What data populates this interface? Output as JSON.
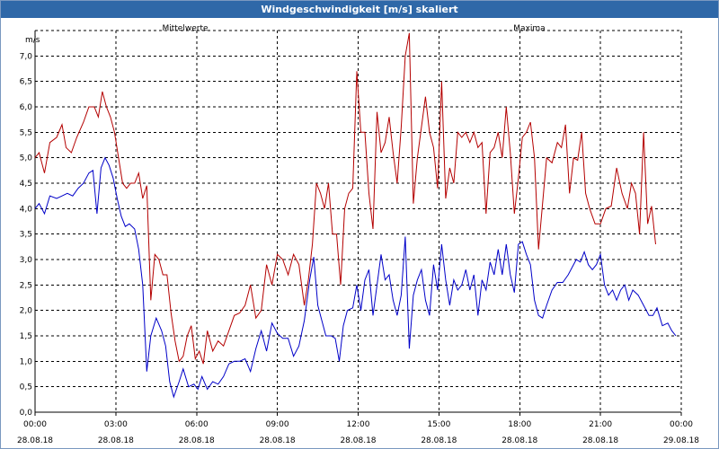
{
  "window": {
    "title": "Windgeschwindigkeit [m/s] skaliert"
  },
  "chart_data": {
    "type": "line",
    "title": "Windgeschwindigkeit [m/s] skaliert",
    "ylabel": "m/s",
    "xlabel": "",
    "ylim": [
      0,
      7.5
    ],
    "xlim": [
      0,
      24
    ],
    "grid": true,
    "legend_position": "top",
    "yticks": [
      0.0,
      0.5,
      1.0,
      1.5,
      2.0,
      2.5,
      3.0,
      3.5,
      4.0,
      4.5,
      5.0,
      5.5,
      6.0,
      6.5,
      7.0
    ],
    "ytick_labels": [
      "0,0",
      "0,5",
      "1,0",
      "1,5",
      "2,0",
      "2,5",
      "3,0",
      "3,5",
      "4,0",
      "4,5",
      "5,0",
      "5,5",
      "6,0",
      "6,5",
      "7,0"
    ],
    "xticks": [
      {
        "time": "00:00",
        "date": "28.08.18"
      },
      {
        "time": "03:00",
        "date": "28.08.18"
      },
      {
        "time": "06:00",
        "date": "28.08.18"
      },
      {
        "time": "09:00",
        "date": "28.08.18"
      },
      {
        "time": "12:00",
        "date": "28.08.18"
      },
      {
        "time": "15:00",
        "date": "28.08.18"
      },
      {
        "time": "18:00",
        "date": "28.08.18"
      },
      {
        "time": "21:00",
        "date": "28.08.18"
      },
      {
        "time": "00:00",
        "date": "29.08.18"
      }
    ],
    "series": [
      {
        "name": "Mittelwerte",
        "color": "#0000c8",
        "points": [
          [
            0.0,
            4.0
          ],
          [
            0.15,
            4.1
          ],
          [
            0.35,
            3.9
          ],
          [
            0.55,
            4.25
          ],
          [
            0.8,
            4.2
          ],
          [
            1.0,
            4.25
          ],
          [
            1.2,
            4.3
          ],
          [
            1.4,
            4.25
          ],
          [
            1.6,
            4.4
          ],
          [
            1.8,
            4.5
          ],
          [
            2.0,
            4.7
          ],
          [
            2.15,
            4.75
          ],
          [
            2.3,
            3.9
          ],
          [
            2.45,
            4.8
          ],
          [
            2.6,
            5.0
          ],
          [
            2.75,
            4.85
          ],
          [
            2.9,
            4.6
          ],
          [
            3.05,
            4.2
          ],
          [
            3.2,
            3.85
          ],
          [
            3.35,
            3.65
          ],
          [
            3.5,
            3.7
          ],
          [
            3.7,
            3.6
          ],
          [
            3.85,
            3.2
          ],
          [
            4.0,
            2.5
          ],
          [
            4.15,
            0.8
          ],
          [
            4.3,
            1.5
          ],
          [
            4.5,
            1.85
          ],
          [
            4.7,
            1.6
          ],
          [
            4.85,
            1.3
          ],
          [
            5.0,
            0.6
          ],
          [
            5.15,
            0.3
          ],
          [
            5.35,
            0.6
          ],
          [
            5.5,
            0.85
          ],
          [
            5.7,
            0.5
          ],
          [
            5.9,
            0.55
          ],
          [
            6.05,
            0.45
          ],
          [
            6.2,
            0.7
          ],
          [
            6.4,
            0.45
          ],
          [
            6.6,
            0.6
          ],
          [
            6.8,
            0.55
          ],
          [
            7.0,
            0.7
          ],
          [
            7.2,
            0.95
          ],
          [
            7.4,
            1.0
          ],
          [
            7.6,
            1.0
          ],
          [
            7.8,
            1.05
          ],
          [
            8.0,
            0.8
          ],
          [
            8.2,
            1.25
          ],
          [
            8.4,
            1.6
          ],
          [
            8.6,
            1.2
          ],
          [
            8.8,
            1.75
          ],
          [
            9.0,
            1.55
          ],
          [
            9.2,
            1.45
          ],
          [
            9.4,
            1.45
          ],
          [
            9.6,
            1.1
          ],
          [
            9.8,
            1.3
          ],
          [
            10.0,
            1.8
          ],
          [
            10.2,
            2.6
          ],
          [
            10.35,
            3.05
          ],
          [
            10.5,
            2.1
          ],
          [
            10.65,
            1.8
          ],
          [
            10.8,
            1.5
          ],
          [
            11.0,
            1.5
          ],
          [
            11.15,
            1.45
          ],
          [
            11.3,
            1.0
          ],
          [
            11.45,
            1.7
          ],
          [
            11.6,
            2.0
          ],
          [
            11.8,
            2.05
          ],
          [
            11.95,
            2.5
          ],
          [
            12.1,
            2.0
          ],
          [
            12.25,
            2.6
          ],
          [
            12.4,
            2.8
          ],
          [
            12.55,
            1.9
          ],
          [
            12.7,
            2.5
          ],
          [
            12.85,
            3.1
          ],
          [
            13.0,
            2.6
          ],
          [
            13.15,
            2.7
          ],
          [
            13.3,
            2.2
          ],
          [
            13.45,
            1.9
          ],
          [
            13.6,
            2.3
          ],
          [
            13.75,
            3.45
          ],
          [
            13.9,
            1.25
          ],
          [
            14.05,
            2.3
          ],
          [
            14.2,
            2.6
          ],
          [
            14.35,
            2.8
          ],
          [
            14.5,
            2.2
          ],
          [
            14.65,
            1.9
          ],
          [
            14.8,
            2.9
          ],
          [
            14.95,
            2.4
          ],
          [
            15.1,
            3.3
          ],
          [
            15.25,
            2.6
          ],
          [
            15.4,
            2.1
          ],
          [
            15.55,
            2.6
          ],
          [
            15.7,
            2.4
          ],
          [
            15.85,
            2.5
          ],
          [
            16.0,
            2.8
          ],
          [
            16.15,
            2.4
          ],
          [
            16.3,
            2.7
          ],
          [
            16.45,
            1.9
          ],
          [
            16.6,
            2.6
          ],
          [
            16.75,
            2.4
          ],
          [
            16.9,
            2.95
          ],
          [
            17.05,
            2.7
          ],
          [
            17.2,
            3.2
          ],
          [
            17.35,
            2.7
          ],
          [
            17.5,
            3.3
          ],
          [
            17.65,
            2.7
          ],
          [
            17.8,
            2.35
          ],
          [
            17.95,
            3.3
          ],
          [
            18.1,
            3.35
          ],
          [
            18.25,
            3.1
          ],
          [
            18.4,
            2.9
          ],
          [
            18.55,
            2.2
          ],
          [
            18.7,
            1.9
          ],
          [
            18.85,
            1.85
          ],
          [
            19.0,
            2.1
          ],
          [
            19.2,
            2.4
          ],
          [
            19.4,
            2.55
          ],
          [
            19.6,
            2.55
          ],
          [
            19.8,
            2.7
          ],
          [
            19.95,
            2.85
          ],
          [
            20.1,
            3.0
          ],
          [
            20.25,
            2.95
          ],
          [
            20.4,
            3.15
          ],
          [
            20.55,
            2.9
          ],
          [
            20.7,
            2.8
          ],
          [
            20.85,
            2.9
          ],
          [
            21.0,
            3.1
          ],
          [
            21.15,
            2.5
          ],
          [
            21.3,
            2.3
          ],
          [
            21.45,
            2.4
          ],
          [
            21.6,
            2.2
          ],
          [
            21.75,
            2.4
          ],
          [
            21.9,
            2.5
          ],
          [
            22.05,
            2.2
          ],
          [
            22.2,
            2.4
          ],
          [
            22.4,
            2.3
          ],
          [
            22.6,
            2.1
          ],
          [
            22.8,
            1.9
          ],
          [
            22.95,
            1.9
          ],
          [
            23.1,
            2.05
          ],
          [
            23.3,
            1.7
          ],
          [
            23.5,
            1.75
          ],
          [
            23.65,
            1.6
          ],
          [
            23.8,
            1.5
          ]
        ]
      },
      {
        "name": "Maxima",
        "color": "#b40000",
        "points": [
          [
            0.0,
            5.0
          ],
          [
            0.15,
            5.1
          ],
          [
            0.35,
            4.7
          ],
          [
            0.55,
            5.3
          ],
          [
            0.8,
            5.4
          ],
          [
            1.0,
            5.65
          ],
          [
            1.15,
            5.2
          ],
          [
            1.35,
            5.1
          ],
          [
            1.55,
            5.4
          ],
          [
            1.8,
            5.7
          ],
          [
            2.0,
            6.0
          ],
          [
            2.2,
            6.0
          ],
          [
            2.35,
            5.8
          ],
          [
            2.5,
            6.3
          ],
          [
            2.65,
            6.0
          ],
          [
            2.8,
            5.8
          ],
          [
            2.95,
            5.5
          ],
          [
            3.1,
            5.0
          ],
          [
            3.25,
            4.5
          ],
          [
            3.4,
            4.4
          ],
          [
            3.55,
            4.5
          ],
          [
            3.7,
            4.5
          ],
          [
            3.85,
            4.7
          ],
          [
            4.0,
            4.2
          ],
          [
            4.15,
            4.45
          ],
          [
            4.3,
            2.2
          ],
          [
            4.45,
            3.1
          ],
          [
            4.6,
            3.0
          ],
          [
            4.75,
            2.7
          ],
          [
            4.9,
            2.7
          ],
          [
            5.05,
            1.95
          ],
          [
            5.2,
            1.4
          ],
          [
            5.35,
            1.0
          ],
          [
            5.5,
            1.1
          ],
          [
            5.65,
            1.5
          ],
          [
            5.8,
            1.7
          ],
          [
            5.95,
            1.05
          ],
          [
            6.1,
            1.2
          ],
          [
            6.25,
            0.95
          ],
          [
            6.4,
            1.6
          ],
          [
            6.6,
            1.2
          ],
          [
            6.8,
            1.4
          ],
          [
            7.0,
            1.3
          ],
          [
            7.2,
            1.6
          ],
          [
            7.4,
            1.9
          ],
          [
            7.6,
            1.95
          ],
          [
            7.8,
            2.1
          ],
          [
            8.0,
            2.5
          ],
          [
            8.2,
            1.85
          ],
          [
            8.4,
            2.0
          ],
          [
            8.6,
            2.9
          ],
          [
            8.8,
            2.5
          ],
          [
            9.0,
            3.1
          ],
          [
            9.2,
            3.0
          ],
          [
            9.4,
            2.7
          ],
          [
            9.6,
            3.1
          ],
          [
            9.8,
            2.9
          ],
          [
            10.0,
            2.1
          ],
          [
            10.15,
            2.6
          ],
          [
            10.3,
            3.3
          ],
          [
            10.45,
            4.5
          ],
          [
            10.6,
            4.3
          ],
          [
            10.75,
            4.0
          ],
          [
            10.9,
            4.5
          ],
          [
            11.05,
            3.5
          ],
          [
            11.2,
            3.5
          ],
          [
            11.35,
            2.5
          ],
          [
            11.5,
            4.0
          ],
          [
            11.65,
            4.3
          ],
          [
            11.8,
            4.4
          ],
          [
            11.95,
            6.7
          ],
          [
            12.1,
            5.5
          ],
          [
            12.25,
            5.5
          ],
          [
            12.4,
            4.3
          ],
          [
            12.55,
            3.6
          ],
          [
            12.7,
            5.9
          ],
          [
            12.85,
            5.1
          ],
          [
            13.0,
            5.3
          ],
          [
            13.15,
            5.8
          ],
          [
            13.3,
            5.1
          ],
          [
            13.45,
            4.5
          ],
          [
            13.6,
            5.6
          ],
          [
            13.75,
            7.0
          ],
          [
            13.9,
            7.45
          ],
          [
            14.05,
            4.1
          ],
          [
            14.2,
            5.0
          ],
          [
            14.35,
            5.6
          ],
          [
            14.5,
            6.2
          ],
          [
            14.65,
            5.5
          ],
          [
            14.8,
            5.2
          ],
          [
            14.95,
            4.4
          ],
          [
            15.1,
            6.5
          ],
          [
            15.25,
            4.2
          ],
          [
            15.4,
            4.8
          ],
          [
            15.55,
            4.5
          ],
          [
            15.7,
            5.5
          ],
          [
            15.85,
            5.4
          ],
          [
            16.0,
            5.5
          ],
          [
            16.15,
            5.3
          ],
          [
            16.3,
            5.5
          ],
          [
            16.45,
            5.2
          ],
          [
            16.6,
            5.3
          ],
          [
            16.75,
            3.9
          ],
          [
            16.9,
            5.1
          ],
          [
            17.05,
            5.2
          ],
          [
            17.2,
            5.5
          ],
          [
            17.35,
            5.0
          ],
          [
            17.5,
            6.0
          ],
          [
            17.65,
            5.1
          ],
          [
            17.8,
            3.9
          ],
          [
            17.95,
            4.6
          ],
          [
            18.1,
            5.4
          ],
          [
            18.25,
            5.5
          ],
          [
            18.4,
            5.7
          ],
          [
            18.55,
            5.0
          ],
          [
            18.7,
            3.2
          ],
          [
            18.85,
            4.1
          ],
          [
            19.0,
            5.0
          ],
          [
            19.2,
            4.9
          ],
          [
            19.4,
            5.3
          ],
          [
            19.55,
            5.2
          ],
          [
            19.7,
            5.65
          ],
          [
            19.85,
            4.3
          ],
          [
            20.0,
            5.0
          ],
          [
            20.15,
            4.95
          ],
          [
            20.3,
            5.5
          ],
          [
            20.45,
            4.3
          ],
          [
            20.6,
            4.0
          ],
          [
            20.8,
            3.7
          ],
          [
            21.0,
            3.7
          ],
          [
            21.2,
            4.0
          ],
          [
            21.4,
            4.05
          ],
          [
            21.6,
            4.8
          ],
          [
            21.8,
            4.3
          ],
          [
            22.0,
            4.0
          ],
          [
            22.15,
            4.5
          ],
          [
            22.3,
            4.3
          ],
          [
            22.45,
            3.5
          ],
          [
            22.6,
            5.5
          ],
          [
            22.75,
            3.7
          ],
          [
            22.9,
            4.05
          ],
          [
            23.05,
            3.3
          ]
        ]
      }
    ]
  }
}
